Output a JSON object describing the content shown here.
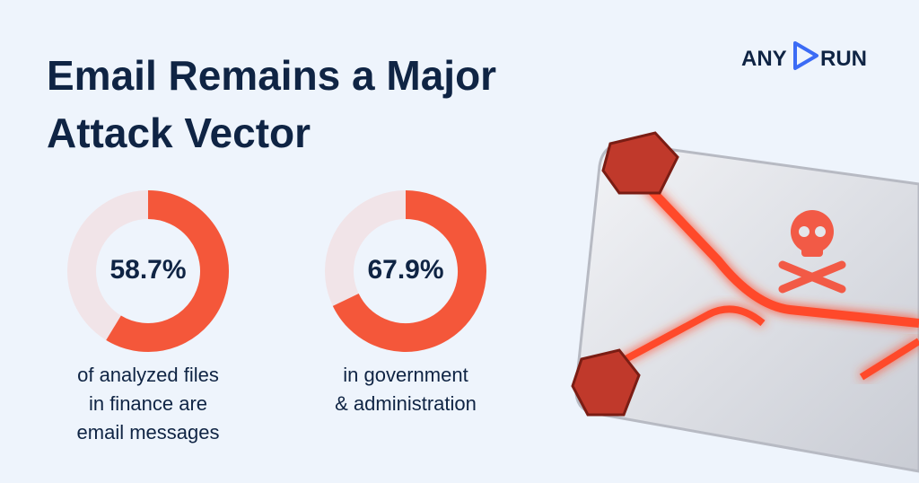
{
  "title_lines": [
    "Email Remains a Major",
    "Attack Vector"
  ],
  "logo": {
    "left": "ANY",
    "right": "RUN"
  },
  "chart_data": [
    {
      "type": "donut",
      "values": [
        58.7
      ],
      "value_labels": [
        "58.7%"
      ],
      "color": "#f4573a",
      "track_color": "#f1e4e8",
      "caption": [
        "of analyzed files",
        "in finance are",
        "email messages"
      ]
    },
    {
      "type": "donut",
      "values": [
        67.9
      ],
      "value_labels": [
        "67.9%"
      ],
      "color": "#f4573a",
      "track_color": "#f1e4e8",
      "caption": [
        "in government",
        "& administration"
      ]
    }
  ]
}
